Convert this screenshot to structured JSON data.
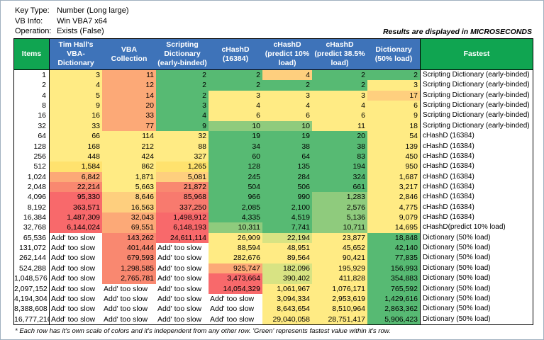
{
  "info": {
    "rows": [
      {
        "label": "Key Type:",
        "value": "Number (Long large)"
      },
      {
        "label": "VB Info:",
        "value": "Win VBA7 x64"
      },
      {
        "label": "Operation:",
        "value": "Exists (False)"
      }
    ]
  },
  "results_note": "Results are displayed in MICROSECONDS",
  "footnote": "* Each row has it's own scale of colors and it's independent from any other row. 'Green' represents fastest value within it's row.",
  "colors": {
    "header_blue": "#3e73b9",
    "header_green": "#10a551",
    "scale_green": "#57ba73",
    "scale_yellow": "#ffeb84",
    "scale_red": "#f8696b"
  },
  "palette": {
    "G": "#57ba73",
    "LG": "#8fcb7d",
    "YG": "#d8e383",
    "Y": "#ffeb84",
    "YD": "#ffe26e",
    "YO": "#fecf7e",
    "O": "#fca977",
    "SO": "#f98870",
    "SR": "#f87a6e",
    "R": "#f8696b",
    "W": "#ffffff"
  },
  "table": {
    "too_slow": "Add' too slow",
    "columns": [
      {
        "label": "Items",
        "kind": "green"
      },
      {
        "label": "Tim Hall's VBA-Dictionary",
        "kind": "blue"
      },
      {
        "label": "VBA Collection",
        "kind": "blue"
      },
      {
        "label": "Scripting Dictionary (early-binded)",
        "kind": "blue"
      },
      {
        "label": "cHashD (16384)",
        "kind": "blue"
      },
      {
        "label": "cHashD (predict 10% load)",
        "kind": "blue"
      },
      {
        "label": "cHashD (predict 38.5% load)",
        "kind": "blue"
      },
      {
        "label": "Dictionary (50% load)",
        "kind": "blue"
      },
      {
        "label": "Fastest",
        "kind": "green"
      }
    ],
    "rows": [
      {
        "items": "1",
        "cells": [
          [
            "3",
            "Y"
          ],
          [
            "11",
            "O"
          ],
          [
            "2",
            "G"
          ],
          [
            "2",
            "G"
          ],
          [
            "4",
            "YO"
          ],
          [
            "2",
            "G"
          ],
          [
            "2",
            "G"
          ]
        ],
        "fastest": "Scripting Dictionary (early-binded)"
      },
      {
        "items": "2",
        "cells": [
          [
            "4",
            "Y"
          ],
          [
            "12",
            "O"
          ],
          [
            "2",
            "G"
          ],
          [
            "2",
            "G"
          ],
          [
            "2",
            "G"
          ],
          [
            "2",
            "G"
          ],
          [
            "3",
            "Y"
          ]
        ],
        "fastest": "Scripting Dictionary (early-binded)"
      },
      {
        "items": "4",
        "cells": [
          [
            "5",
            "Y"
          ],
          [
            "14",
            "O"
          ],
          [
            "2",
            "G"
          ],
          [
            "3",
            "Y"
          ],
          [
            "3",
            "Y"
          ],
          [
            "3",
            "Y"
          ],
          [
            "17",
            "YO"
          ]
        ],
        "fastest": "Scripting Dictionary (early-binded)"
      },
      {
        "items": "8",
        "cells": [
          [
            "9",
            "Y"
          ],
          [
            "20",
            "O"
          ],
          [
            "3",
            "G"
          ],
          [
            "4",
            "Y"
          ],
          [
            "4",
            "Y"
          ],
          [
            "4",
            "Y"
          ],
          [
            "6",
            "Y"
          ]
        ],
        "fastest": "Scripting Dictionary (early-binded)"
      },
      {
        "items": "16",
        "cells": [
          [
            "16",
            "Y"
          ],
          [
            "33",
            "O"
          ],
          [
            "4",
            "G"
          ],
          [
            "6",
            "Y"
          ],
          [
            "6",
            "Y"
          ],
          [
            "6",
            "Y"
          ],
          [
            "9",
            "Y"
          ]
        ],
        "fastest": "Scripting Dictionary (early-binded)"
      },
      {
        "items": "32",
        "cells": [
          [
            "33",
            "Y"
          ],
          [
            "77",
            "O"
          ],
          [
            "9",
            "G"
          ],
          [
            "10",
            "LG"
          ],
          [
            "10",
            "LG"
          ],
          [
            "11",
            "Y"
          ],
          [
            "18",
            "Y"
          ]
        ],
        "fastest": "Scripting Dictionary (early-binded)"
      },
      {
        "items": "64",
        "cells": [
          [
            "66",
            "Y"
          ],
          [
            "114",
            "Y"
          ],
          [
            "32",
            "Y"
          ],
          [
            "19",
            "G"
          ],
          [
            "19",
            "G"
          ],
          [
            "20",
            "G"
          ],
          [
            "54",
            "Y"
          ]
        ],
        "fastest": "cHashD (16384)"
      },
      {
        "items": "128",
        "cells": [
          [
            "168",
            "Y"
          ],
          [
            "212",
            "Y"
          ],
          [
            "88",
            "Y"
          ],
          [
            "34",
            "G"
          ],
          [
            "38",
            "G"
          ],
          [
            "38",
            "G"
          ],
          [
            "139",
            "Y"
          ]
        ],
        "fastest": "cHashD (16384)"
      },
      {
        "items": "256",
        "cells": [
          [
            "448",
            "Y"
          ],
          [
            "424",
            "Y"
          ],
          [
            "327",
            "Y"
          ],
          [
            "60",
            "G"
          ],
          [
            "64",
            "G"
          ],
          [
            "83",
            "G"
          ],
          [
            "450",
            "Y"
          ]
        ],
        "fastest": "cHashD (16384)"
      },
      {
        "items": "512",
        "cells": [
          [
            "1,584",
            "YD"
          ],
          [
            "862",
            "Y"
          ],
          [
            "1,265",
            "YD"
          ],
          [
            "128",
            "G"
          ],
          [
            "135",
            "G"
          ],
          [
            "194",
            "G"
          ],
          [
            "950",
            "Y"
          ]
        ],
        "fastest": "cHashD (16384)"
      },
      {
        "items": "1,024",
        "cells": [
          [
            "6,842",
            "O"
          ],
          [
            "1,871",
            "Y"
          ],
          [
            "5,081",
            "YO"
          ],
          [
            "245",
            "G"
          ],
          [
            "284",
            "G"
          ],
          [
            "324",
            "G"
          ],
          [
            "1,687",
            "Y"
          ]
        ],
        "fastest": "cHashD (16384)"
      },
      {
        "items": "2,048",
        "cells": [
          [
            "22,214",
            "SO"
          ],
          [
            "5,663",
            "Y"
          ],
          [
            "21,872",
            "SO"
          ],
          [
            "504",
            "G"
          ],
          [
            "506",
            "G"
          ],
          [
            "661",
            "G"
          ],
          [
            "3,217",
            "Y"
          ]
        ],
        "fastest": "cHashD (16384)"
      },
      {
        "items": "4,096",
        "cells": [
          [
            "95,330",
            "R"
          ],
          [
            "8,646",
            "YO"
          ],
          [
            "85,968",
            "SR"
          ],
          [
            "966",
            "G"
          ],
          [
            "990",
            "G"
          ],
          [
            "1,283",
            "LG"
          ],
          [
            "2,846",
            "Y"
          ]
        ],
        "fastest": "cHashD (16384)"
      },
      {
        "items": "8,192",
        "cells": [
          [
            "363,571",
            "R"
          ],
          [
            "16,563",
            "YO"
          ],
          [
            "337,250",
            "SR"
          ],
          [
            "2,085",
            "G"
          ],
          [
            "2,100",
            "G"
          ],
          [
            "2,576",
            "LG"
          ],
          [
            "4,775",
            "Y"
          ]
        ],
        "fastest": "cHashD (16384)"
      },
      {
        "items": "16,384",
        "cells": [
          [
            "1,487,309",
            "R"
          ],
          [
            "32,043",
            "O"
          ],
          [
            "1,498,912",
            "R"
          ],
          [
            "4,335",
            "G"
          ],
          [
            "4,519",
            "G"
          ],
          [
            "5,136",
            "LG"
          ],
          [
            "9,079",
            "Y"
          ]
        ],
        "fastest": "cHashD (16384)"
      },
      {
        "items": "32,768",
        "cells": [
          [
            "6,144,024",
            "R"
          ],
          [
            "69,551",
            "O"
          ],
          [
            "6,148,193",
            "R"
          ],
          [
            "10,311",
            "LG"
          ],
          [
            "7,741",
            "G"
          ],
          [
            "10,711",
            "LG"
          ],
          [
            "14,695",
            "Y"
          ]
        ],
        "fastest": "cHashD(predict 10% load)"
      },
      {
        "items": "65,536",
        "cells": [
          [
            "Add' too slow",
            "W"
          ],
          [
            "143,262",
            "SO"
          ],
          [
            "24,611,114",
            "R"
          ],
          [
            "26,909",
            "Y"
          ],
          [
            "22,194",
            "YG"
          ],
          [
            "23,877",
            "Y"
          ],
          [
            "18,848",
            "G"
          ]
        ],
        "fastest": "Dictionary (50% load)"
      },
      {
        "items": "131,072",
        "cells": [
          [
            "Add' too slow",
            "W"
          ],
          [
            "401,444",
            "SO"
          ],
          [
            "Add' too slow",
            "W"
          ],
          [
            "88,594",
            "Y"
          ],
          [
            "48,951",
            "Y"
          ],
          [
            "45,652",
            "Y"
          ],
          [
            "42,140",
            "G"
          ]
        ],
        "fastest": "Dictionary (50% load)"
      },
      {
        "items": "262,144",
        "cells": [
          [
            "Add' too slow",
            "W"
          ],
          [
            "679,593",
            "SO"
          ],
          [
            "Add' too slow",
            "W"
          ],
          [
            "282,676",
            "Y"
          ],
          [
            "89,564",
            "Y"
          ],
          [
            "90,421",
            "Y"
          ],
          [
            "77,835",
            "G"
          ]
        ],
        "fastest": "Dictionary (50% load)"
      },
      {
        "items": "524,288",
        "cells": [
          [
            "Add' too slow",
            "W"
          ],
          [
            "1,298,585",
            "SO"
          ],
          [
            "Add' too slow",
            "W"
          ],
          [
            "925,747",
            "O"
          ],
          [
            "182,096",
            "YG"
          ],
          [
            "195,929",
            "Y"
          ],
          [
            "156,993",
            "G"
          ]
        ],
        "fastest": "Dictionary (50% load)"
      },
      {
        "items": "1,048,576",
        "cells": [
          [
            "Add' too slow",
            "W"
          ],
          [
            "2,765,781",
            "SO"
          ],
          [
            "Add' too slow",
            "W"
          ],
          [
            "3,473,664",
            "R"
          ],
          [
            "390,402",
            "YG"
          ],
          [
            "411,828",
            "Y"
          ],
          [
            "354,883",
            "G"
          ]
        ],
        "fastest": "Dictionary (50% load)"
      },
      {
        "items": "2,097,152",
        "cells": [
          [
            "Add' too slow",
            "W"
          ],
          [
            "Add' too slow",
            "W"
          ],
          [
            "Add' too slow",
            "W"
          ],
          [
            "14,054,329",
            "R"
          ],
          [
            "1,061,967",
            "Y"
          ],
          [
            "1,076,171",
            "Y"
          ],
          [
            "765,592",
            "G"
          ]
        ],
        "fastest": "Dictionary (50% load)"
      },
      {
        "items": "4,194,304",
        "cells": [
          [
            "Add' too slow",
            "W"
          ],
          [
            "Add' too slow",
            "W"
          ],
          [
            "Add' too slow",
            "W"
          ],
          [
            "Add' too slow",
            "W"
          ],
          [
            "3,094,334",
            "Y"
          ],
          [
            "2,953,619",
            "Y"
          ],
          [
            "1,429,616",
            "G"
          ]
        ],
        "fastest": "Dictionary (50% load)"
      },
      {
        "items": "8,388,608",
        "cells": [
          [
            "Add' too slow",
            "W"
          ],
          [
            "Add' too slow",
            "W"
          ],
          [
            "Add' too slow",
            "W"
          ],
          [
            "Add' too slow",
            "W"
          ],
          [
            "8,643,654",
            "Y"
          ],
          [
            "8,510,964",
            "Y"
          ],
          [
            "2,863,362",
            "G"
          ]
        ],
        "fastest": "Dictionary (50% load)"
      },
      {
        "items": "16,777,216",
        "cells": [
          [
            "Add' too slow",
            "W"
          ],
          [
            "Add' too slow",
            "W"
          ],
          [
            "Add' too slow",
            "W"
          ],
          [
            "Add' too slow",
            "W"
          ],
          [
            "29,040,058",
            "Y"
          ],
          [
            "28,751,417",
            "Y"
          ],
          [
            "5,906,423",
            "G"
          ]
        ],
        "fastest": "Dictionary (50% load)"
      }
    ]
  }
}
